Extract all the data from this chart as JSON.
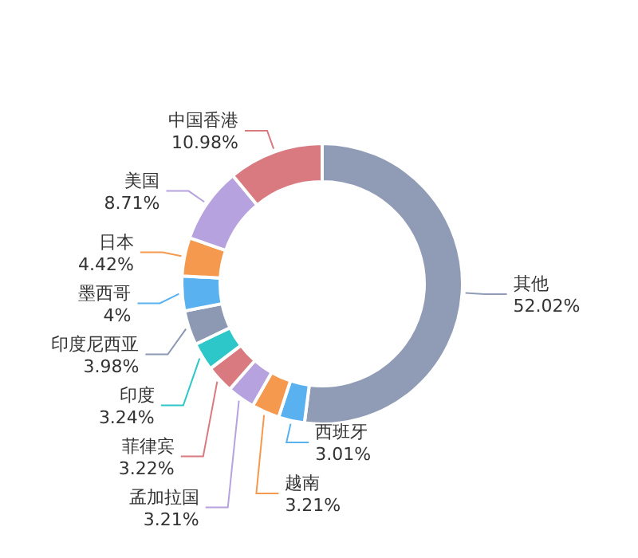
{
  "chart_data": {
    "type": "donut",
    "categories": [
      "其他",
      "西班牙",
      "越南",
      "孟加拉国",
      "菲律宾",
      "印度",
      "印度尼西亚",
      "墨西哥",
      "日本",
      "美国",
      "中国香港"
    ],
    "values": [
      52.02,
      3.01,
      3.21,
      3.21,
      3.22,
      3.24,
      3.98,
      4,
      4.42,
      8.71,
      10.98
    ],
    "colors": [
      "#909cb6",
      "#5ab1ef",
      "#f5994e",
      "#b6a2de",
      "#d87a80",
      "#2ec7c9",
      "#8d98b3",
      "#5ab1ef",
      "#f5994e",
      "#b6a2de",
      "#d87a80"
    ],
    "value_labels": [
      "52.02%",
      "3.01%",
      "3.21%",
      "3.21%",
      "3.22%",
      "3.24%",
      "3.98%",
      "4%",
      "4.42%",
      "8.71%",
      "10.98%"
    ]
  }
}
